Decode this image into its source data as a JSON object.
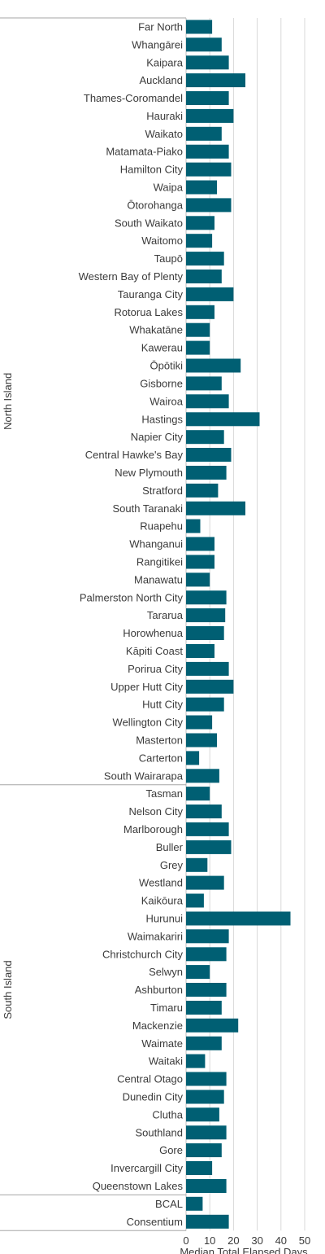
{
  "chart_data": {
    "type": "bar",
    "orientation": "horizontal",
    "xlabel": "Median Total Elapsed Days",
    "xlim": [
      0,
      50
    ],
    "xticks": [
      0,
      10,
      20,
      30,
      40,
      50
    ],
    "grid": true,
    "bar_color": "#005f73",
    "categories": [
      "Far North",
      "Whangārei",
      "Kaipara",
      "Auckland",
      "Thames-Coromandel",
      "Hauraki",
      "Waikato",
      "Matamata-Piako",
      "Hamilton City",
      "Waipa",
      "Ōtorohanga",
      "South Waikato",
      "Waitomo",
      "Taupō",
      "Western Bay of Plenty",
      "Tauranga City",
      "Rotorua Lakes",
      "Whakatāne",
      "Kawerau",
      "Ōpōtiki",
      "Gisborne",
      "Wairoa",
      "Hastings",
      "Napier City",
      "Central Hawke's Bay",
      "New Plymouth",
      "Stratford",
      "South Taranaki",
      "Ruapehu",
      "Whanganui",
      "Rangitikei",
      "Manawatu",
      "Palmerston North City",
      "Tararua",
      "Horowhenua",
      "Kāpiti Coast",
      "Porirua City",
      "Upper Hutt City",
      "Hutt City",
      "Wellington City",
      "Masterton",
      "Carterton",
      "South Wairarapa",
      "Tasman",
      "Nelson City",
      "Marlborough",
      "Buller",
      "Grey",
      "Westland",
      "Kaikōura",
      "Hurunui",
      "Waimakariri",
      "Christchurch City",
      "Selwyn",
      "Ashburton",
      "Timaru",
      "Mackenzie",
      "Waimate",
      "Waitaki",
      "Central Otago",
      "Dunedin City",
      "Clutha",
      "Southland",
      "Gore",
      "Invercargill City",
      "Queenstown Lakes",
      "BCAL",
      "Consentium"
    ],
    "values": [
      11,
      15,
      18,
      25,
      18,
      20,
      15,
      18,
      19,
      13,
      19,
      12,
      11,
      16,
      15,
      20,
      12,
      10,
      10,
      23,
      15,
      18,
      31,
      16,
      19,
      17,
      13.5,
      25,
      6,
      12,
      12,
      10,
      17,
      16.5,
      16,
      12,
      18,
      20,
      16,
      11,
      13,
      5.5,
      14,
      10,
      15,
      18,
      19,
      9,
      16,
      7.5,
      44,
      18,
      17,
      10,
      17,
      15,
      22,
      15,
      8,
      17,
      16,
      14,
      17,
      15,
      11,
      17,
      7,
      18
    ],
    "groups": [
      {
        "label": "North Island",
        "start": 0,
        "count": 43
      },
      {
        "label": "South Island",
        "start": 43,
        "count": 23
      },
      {
        "label": "",
        "start": 66,
        "count": 2
      }
    ]
  }
}
